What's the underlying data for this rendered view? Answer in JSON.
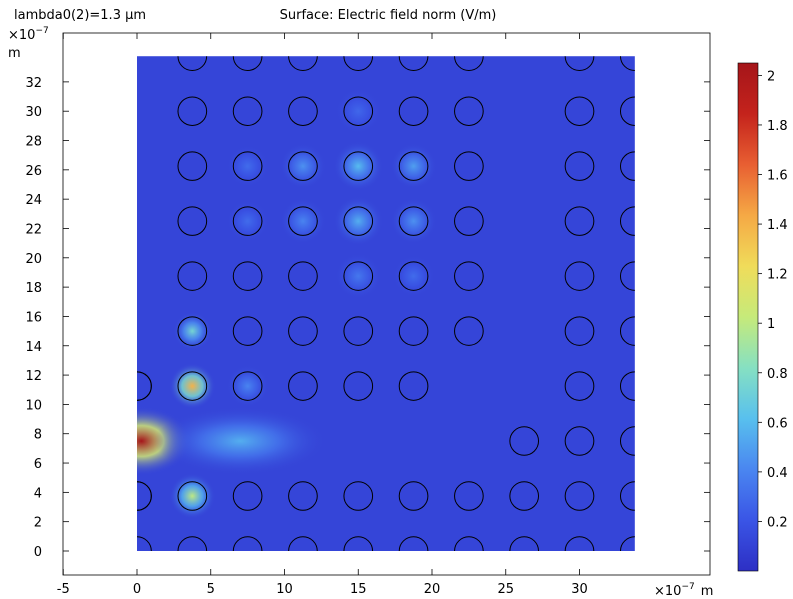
{
  "header": {
    "param_label": "lambda0(2)=1.3 µm",
    "title": "Surface: Electric field norm (V/m)"
  },
  "chart_data": {
    "type": "heatmap",
    "title": "Surface: Electric field norm (V/m)",
    "parameter": "lambda0(2)=1.3 µm",
    "x_axis": {
      "multiplier": "×10",
      "exponent": "−7",
      "unit": "m",
      "range": [
        -5,
        38
      ],
      "ticks": [
        -5,
        0,
        5,
        10,
        15,
        20,
        25,
        30
      ]
    },
    "y_axis": {
      "multiplier": "×10",
      "exponent": "−7",
      "unit": "m",
      "range": [
        -1.5,
        35.5
      ],
      "ticks": [
        0,
        2,
        4,
        6,
        8,
        10,
        12,
        14,
        16,
        18,
        20,
        22,
        24,
        26,
        28,
        30,
        32
      ]
    },
    "domain": {
      "x": [
        0,
        33.75
      ],
      "y": [
        0,
        33.75
      ]
    },
    "colorbar": {
      "min": 0,
      "max": 2.05,
      "ticks": [
        0.2,
        0.4,
        0.6,
        0.8,
        1,
        1.2,
        1.4,
        1.6,
        1.8,
        2
      ],
      "tick_labels": [
        "0.2",
        "0.4",
        "0.6",
        "0.8",
        "1",
        "1.2",
        "1.4",
        "1.6",
        "1.8",
        "2"
      ],
      "colormap": "rainbow",
      "stops": [
        "#2d2fc4",
        "#3a55e6",
        "#4a86f0",
        "#58c0ee",
        "#86e0c2",
        "#c6ea7a",
        "#f0dc5a",
        "#f5a945",
        "#e85f32",
        "#c4231c",
        "#a5151a"
      ]
    },
    "rod_radius": 1.35,
    "rod_lattice": {
      "x": [
        0,
        3.75,
        7.5,
        11.25,
        15,
        18.75,
        22.5,
        26.25,
        30,
        33.75
      ],
      "y": [
        0,
        3.75,
        7.5,
        11.25,
        15,
        18.75,
        22.5,
        26.25,
        30,
        33.75
      ]
    },
    "rods_missing": [
      [
        0,
        7.5
      ],
      [
        3.75,
        7.5
      ],
      [
        7.5,
        7.5
      ],
      [
        11.25,
        7.5
      ],
      [
        15,
        7.5
      ],
      [
        18.75,
        7.5
      ],
      [
        22.5,
        7.5
      ],
      [
        22.5,
        11.25
      ],
      [
        26.25,
        11.25
      ],
      [
        26.25,
        15
      ],
      [
        26.25,
        18.75
      ],
      [
        26.25,
        22.5
      ],
      [
        26.25,
        26.25
      ],
      [
        26.25,
        30
      ],
      [
        26.25,
        33.75
      ],
      [
        0,
        15
      ],
      [
        0,
        18.75
      ],
      [
        0,
        22.5
      ],
      [
        0,
        26.25
      ],
      [
        0,
        30
      ],
      [
        0,
        33.75
      ]
    ],
    "rods_partial": [
      [
        0,
        3.75
      ],
      [
        0,
        11.25
      ]
    ],
    "field_spots": [
      {
        "x": 0.3,
        "y": 7.5,
        "value": 2.05,
        "spread": [
          2.6,
          1.8
        ]
      },
      {
        "x": 3.75,
        "y": 11.25,
        "value": 1.4,
        "spread": [
          1.2,
          1.2
        ]
      },
      {
        "x": 3.75,
        "y": 3.75,
        "value": 1.0,
        "spread": [
          1.2,
          1.2
        ]
      },
      {
        "x": 3.75,
        "y": 15,
        "value": 0.75,
        "spread": [
          1.0,
          1.0
        ]
      },
      {
        "x": 15,
        "y": 26.25,
        "value": 0.6,
        "spread": [
          1.3,
          1.3
        ]
      },
      {
        "x": 15,
        "y": 22.5,
        "value": 0.55,
        "spread": [
          1.3,
          1.3
        ]
      },
      {
        "x": 18.75,
        "y": 26.25,
        "value": 0.5,
        "spread": [
          1.2,
          1.2
        ]
      },
      {
        "x": 18.75,
        "y": 22.5,
        "value": 0.45,
        "spread": [
          1.2,
          1.2
        ]
      },
      {
        "x": 11.25,
        "y": 26.25,
        "value": 0.45,
        "spread": [
          1.2,
          1.2
        ]
      },
      {
        "x": 11.25,
        "y": 22.5,
        "value": 0.4,
        "spread": [
          1.2,
          1.2
        ]
      },
      {
        "x": 15,
        "y": 18.75,
        "value": 0.35,
        "spread": [
          1.2,
          1.2
        ]
      },
      {
        "x": 18.75,
        "y": 18.75,
        "value": 0.3,
        "spread": [
          1.1,
          1.1
        ]
      },
      {
        "x": 7.5,
        "y": 22.5,
        "value": 0.3,
        "spread": [
          1.1,
          1.1
        ]
      },
      {
        "x": 7.5,
        "y": 26.25,
        "value": 0.3,
        "spread": [
          1.1,
          1.1
        ]
      },
      {
        "x": 15,
        "y": 30,
        "value": 0.28,
        "spread": [
          1.2,
          1.2
        ]
      },
      {
        "x": 7,
        "y": 7.5,
        "value": 0.55,
        "spread": [
          4.5,
          1.8
        ]
      },
      {
        "x": 7.5,
        "y": 11.25,
        "value": 0.4,
        "spread": [
          1.1,
          1.1
        ]
      }
    ]
  }
}
